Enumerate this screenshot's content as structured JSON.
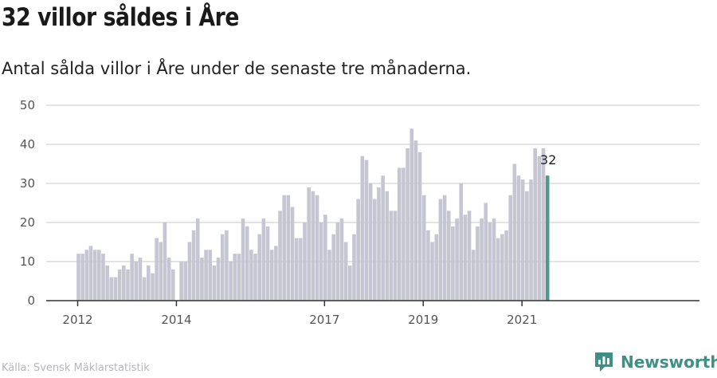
{
  "header": {
    "title": "32 villor såldes i Åre",
    "subtitle": "Antal sålda villor i Åre under de senaste tre månaderna."
  },
  "footer": {
    "source": "Källa: Svensk Mäklarstatistik",
    "brand": "Newsworthy",
    "brand_icon": "newsworthy-logo-icon"
  },
  "colors": {
    "bar": "#c6c6d2",
    "highlight": "#4c9a8e",
    "grid": "#dcdcdc",
    "axis": "#333333"
  },
  "chart_data": {
    "type": "bar",
    "title": "32 villor såldes i Åre",
    "subtitle": "Antal sålda villor i Åre under de senaste tre månaderna.",
    "xlabel": "",
    "ylabel": "",
    "ylim": [
      0,
      50
    ],
    "yticks": [
      0,
      10,
      20,
      30,
      40,
      50
    ],
    "grid": true,
    "x_tick_labels": [
      "2012",
      "2014",
      "2017",
      "2019",
      "2021"
    ],
    "x_tick_indices": [
      0,
      24,
      60,
      84,
      108
    ],
    "values": [
      12,
      12,
      13,
      14,
      13,
      13,
      12,
      9,
      6,
      6,
      8,
      9,
      8,
      12,
      10,
      11,
      6,
      9,
      7,
      16,
      15,
      20,
      11,
      8,
      null,
      10,
      10,
      15,
      18,
      21,
      11,
      13,
      13,
      9,
      11,
      17,
      18,
      10,
      12,
      12,
      21,
      19,
      13,
      12,
      17,
      21,
      19,
      13,
      14,
      23,
      27,
      27,
      24,
      16,
      16,
      20,
      29,
      28,
      27,
      20,
      22,
      13,
      17,
      20,
      21,
      15,
      9,
      17,
      26,
      37,
      36,
      30,
      26,
      29,
      32,
      28,
      23,
      23,
      34,
      34,
      39,
      44,
      41,
      38,
      27,
      18,
      15,
      17,
      26,
      27,
      23,
      19,
      21,
      30,
      22,
      23,
      13,
      19,
      21,
      25,
      20,
      21,
      16,
      17,
      18,
      27,
      35,
      32,
      31,
      28,
      31,
      39,
      37,
      39,
      32
    ],
    "highlight_index": 114,
    "highlight_label": "32"
  }
}
